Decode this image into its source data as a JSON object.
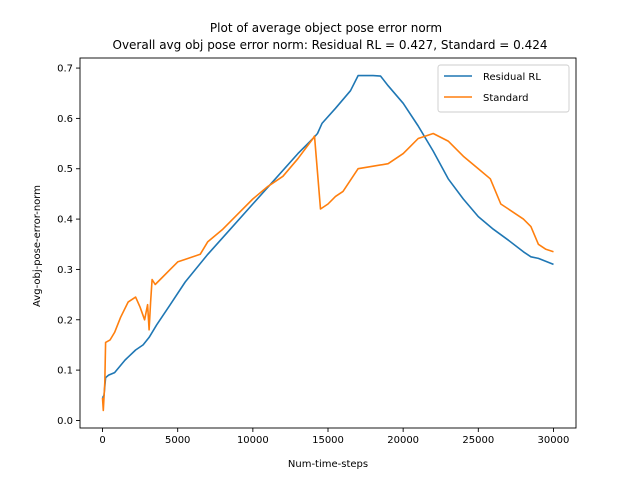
{
  "chart_data": {
    "type": "line",
    "title": "Plot of average object pose error norm",
    "subtitle": "Overall avg obj pose error norm: Residual RL = 0.427, Standard = 0.424",
    "xlabel": "Num-time-steps",
    "ylabel": "Avg-obj-pose-error-norm",
    "xlim": [
      -1500,
      31500
    ],
    "ylim": [
      -0.015,
      0.72
    ],
    "xticks": [
      0,
      5000,
      10000,
      15000,
      20000,
      25000,
      30000
    ],
    "yticks": [
      0.0,
      0.1,
      0.2,
      0.3,
      0.4,
      0.5,
      0.6,
      0.7
    ],
    "ytick_labels": [
      "0.0",
      "0.1",
      "0.2",
      "0.3",
      "0.4",
      "0.5",
      "0.6",
      "0.7"
    ],
    "grid": false,
    "legend_position": "top-right",
    "series": [
      {
        "name": "Residual RL",
        "color": "#1f77b4",
        "x": [
          0,
          100,
          200,
          400,
          800,
          1500,
          2200,
          2700,
          3100,
          3600,
          4500,
          5500,
          7000,
          8500,
          10000,
          11500,
          13000,
          14000,
          14300,
          14600,
          15500,
          16500,
          17000,
          18000,
          18500,
          19000,
          20000,
          21000,
          22000,
          23000,
          24000,
          25000,
          26000,
          27000,
          28000,
          28500,
          29000,
          30000
        ],
        "y": [
          0.045,
          0.05,
          0.085,
          0.09,
          0.095,
          0.12,
          0.14,
          0.15,
          0.165,
          0.19,
          0.23,
          0.275,
          0.33,
          0.38,
          0.43,
          0.48,
          0.53,
          0.56,
          0.57,
          0.59,
          0.62,
          0.655,
          0.685,
          0.685,
          0.684,
          0.665,
          0.63,
          0.585,
          0.535,
          0.48,
          0.44,
          0.405,
          0.38,
          0.358,
          0.335,
          0.325,
          0.322,
          0.31
        ]
      },
      {
        "name": "Standard",
        "color": "#ff7f0e",
        "x": [
          0,
          50,
          150,
          200,
          500,
          800,
          1200,
          1700,
          2200,
          2500,
          2800,
          3000,
          3100,
          3200,
          3300,
          3500,
          4000,
          4500,
          5000,
          5500,
          6500,
          7000,
          8000,
          9000,
          10000,
          11000,
          12000,
          13000,
          14000,
          14100,
          14500,
          15000,
          15500,
          16000,
          17000,
          18000,
          19000,
          20000,
          20500,
          21000,
          22000,
          23000,
          24000,
          25000,
          25800,
          26500,
          27000,
          28000,
          28500,
          29000,
          29500,
          30000
        ],
        "y": [
          0.045,
          0.02,
          0.075,
          0.155,
          0.16,
          0.175,
          0.205,
          0.235,
          0.245,
          0.225,
          0.2,
          0.23,
          0.18,
          0.235,
          0.28,
          0.27,
          0.285,
          0.3,
          0.315,
          0.32,
          0.33,
          0.355,
          0.38,
          0.41,
          0.44,
          0.465,
          0.485,
          0.52,
          0.56,
          0.565,
          0.42,
          0.43,
          0.445,
          0.455,
          0.5,
          0.505,
          0.51,
          0.53,
          0.545,
          0.56,
          0.57,
          0.555,
          0.525,
          0.5,
          0.48,
          0.43,
          0.42,
          0.4,
          0.385,
          0.35,
          0.34,
          0.335
        ]
      }
    ]
  }
}
